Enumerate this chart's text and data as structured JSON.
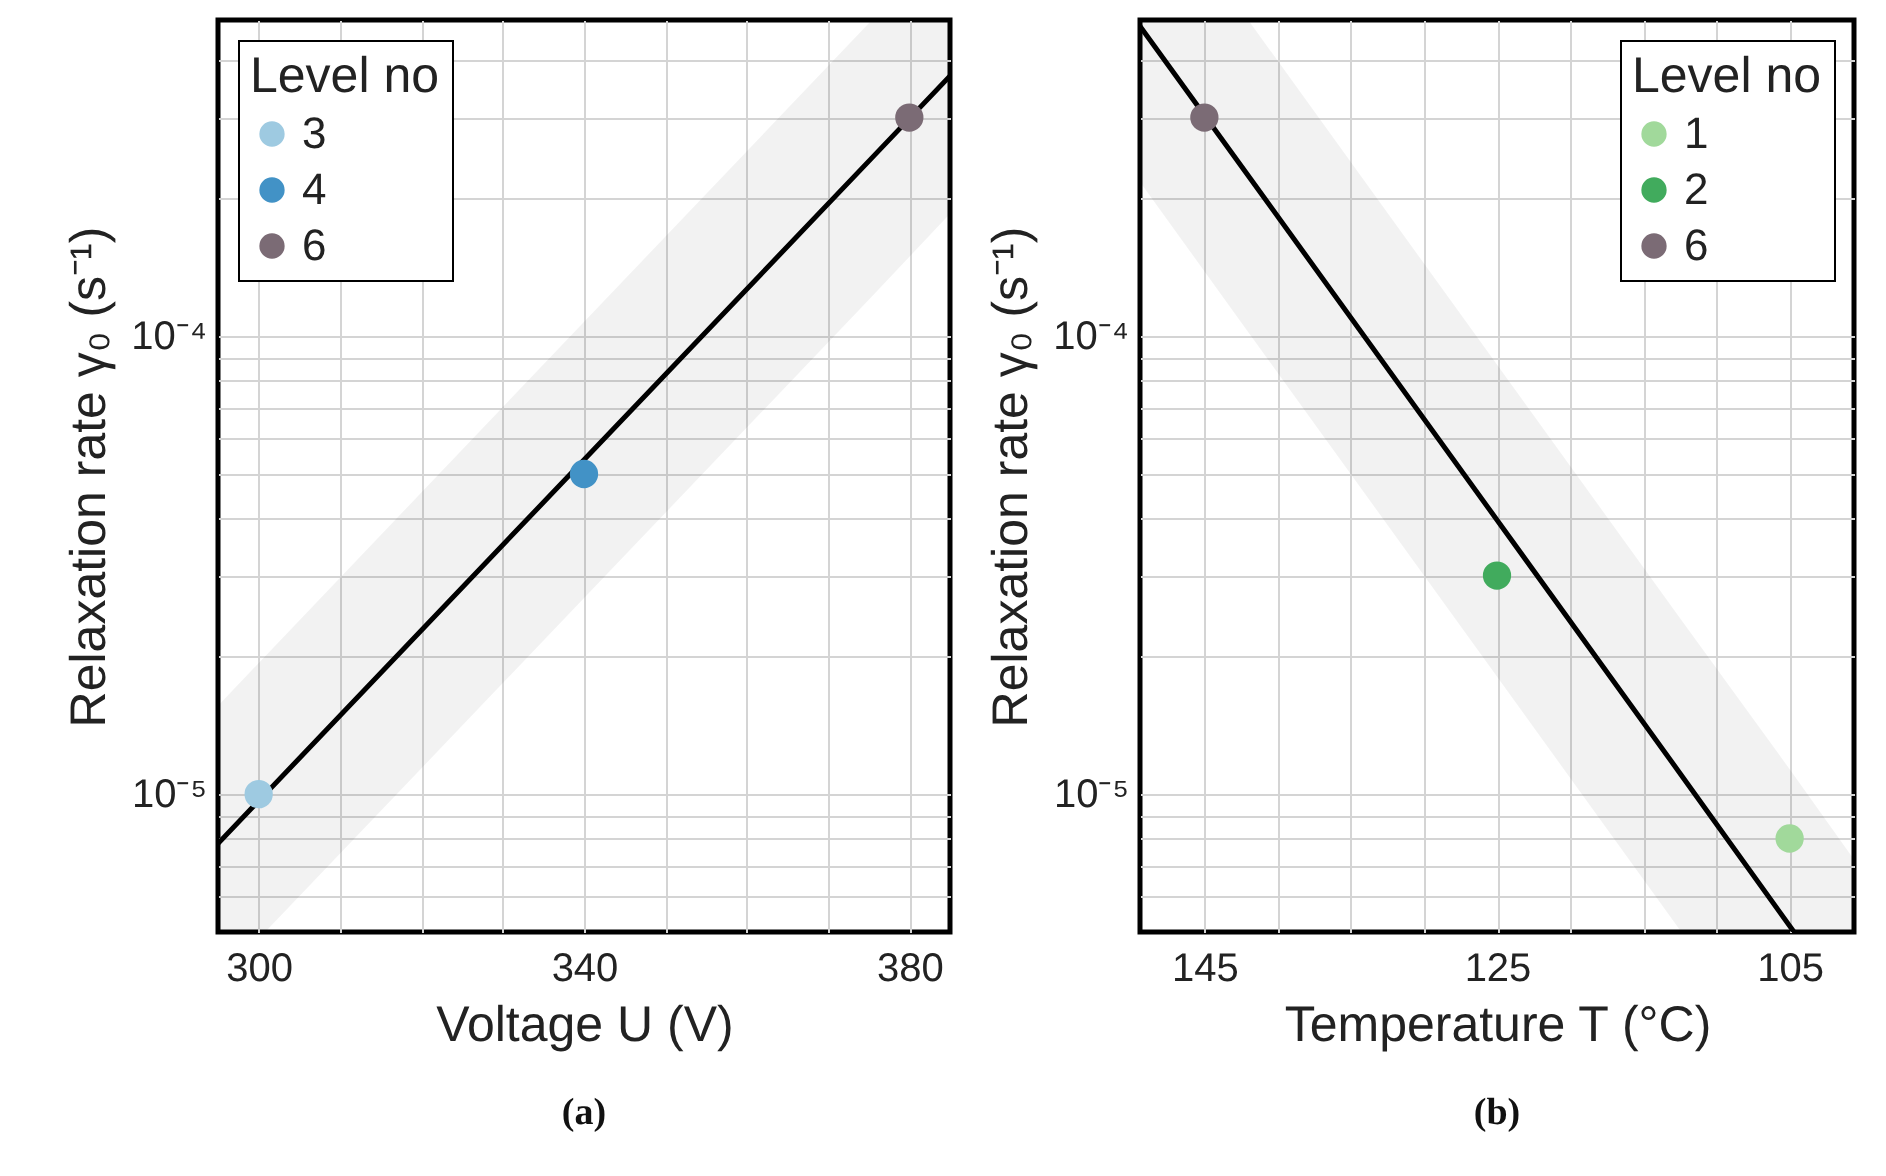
{
  "chart_data": [
    {
      "type": "scatter",
      "xlabel": "Voltage U (V)",
      "ylabel": "Relaxation rate γ₀ (s⁻¹)",
      "legend_title": "Level no",
      "legend": "top left",
      "log": "y",
      "grid": true,
      "marker": "circle",
      "annotations": [
        "(a)"
      ],
      "xlim": [
        295,
        385
      ],
      "xticks": [
        300,
        {
          "value": 310,
          "label": null
        },
        {
          "value": 320,
          "label": null
        },
        {
          "value": 330,
          "label": null
        },
        340,
        {
          "value": 350,
          "label": null
        },
        {
          "value": 360,
          "label": null
        },
        {
          "value": 370,
          "label": null
        },
        380
      ],
      "ylim": [
        5e-06,
        0.00049
      ],
      "yticks": [
        {
          "value": 6e-06,
          "label": null
        },
        {
          "value": 7e-06,
          "label": null
        },
        {
          "value": 8e-06,
          "label": null
        },
        {
          "value": 9e-06,
          "label": null
        },
        {
          "value": 1e-05,
          "label": "10⁻⁵"
        },
        {
          "value": 2e-05,
          "label": null
        },
        {
          "value": 3e-05,
          "label": null
        },
        {
          "value": 4e-05,
          "label": null
        },
        {
          "value": 5e-05,
          "label": null
        },
        {
          "value": 6e-05,
          "label": null
        },
        {
          "value": 7e-05,
          "label": null
        },
        {
          "value": 8e-05,
          "label": null
        },
        {
          "value": 9e-05,
          "label": null
        },
        {
          "value": 0.0001,
          "label": "10⁻⁴"
        },
        {
          "value": 0.0002,
          "label": null
        },
        {
          "value": 0.0003,
          "label": null
        },
        {
          "value": 0.0004,
          "label": null
        }
      ],
      "series": [
        {
          "type": "line",
          "marker": "none",
          "color": "#000000",
          "x": [
            295,
            300.8,
            375.4,
            385
          ],
          "values": [
            7.8e-06,
            1e-05,
            0.000245,
            0.00037
          ],
          "lower": [
            5e-06,
            5e-06,
            0.000122,
            0.000185
          ],
          "upper": [
            1.56e-05,
            2e-05,
            0.00049,
            0.00049
          ]
        },
        {
          "name": "3",
          "color": "#9ecae1",
          "x": [
            300
          ],
          "values": [
            1e-05
          ]
        },
        {
          "name": "4",
          "color": "#4292c6",
          "x": [
            340
          ],
          "values": [
            5e-05
          ]
        },
        {
          "name": "6",
          "color": "#7b6b75",
          "x": [
            380
          ],
          "values": [
            0.0003
          ]
        }
      ]
    },
    {
      "type": "scatter",
      "xlabel": "Temperature T (°C)",
      "ylabel": "Relaxation rate γ₀ (s⁻¹)",
      "legend_title": "Level no",
      "legend": "top right",
      "log": "y",
      "grid": true,
      "marker": "circle",
      "annotations": [
        "(b)"
      ],
      "xlim": [
        149.4,
        100.6
      ],
      "xticks": [
        145,
        {
          "value": 140,
          "label": null
        },
        {
          "value": 135,
          "label": null
        },
        {
          "value": 130,
          "label": null
        },
        125,
        {
          "value": 120,
          "label": null
        },
        {
          "value": 115,
          "label": null
        },
        {
          "value": 110,
          "label": null
        },
        105
      ],
      "ylim": [
        5e-06,
        0.00049
      ],
      "yticks": [
        {
          "value": 6e-06,
          "label": null
        },
        {
          "value": 7e-06,
          "label": null
        },
        {
          "value": 8e-06,
          "label": null
        },
        {
          "value": 9e-06,
          "label": null
        },
        {
          "value": 1e-05,
          "label": "10⁻⁵"
        },
        {
          "value": 2e-05,
          "label": null
        },
        {
          "value": 3e-05,
          "label": null
        },
        {
          "value": 4e-05,
          "label": null
        },
        {
          "value": 5e-05,
          "label": null
        },
        {
          "value": 6e-05,
          "label": null
        },
        {
          "value": 7e-05,
          "label": null
        },
        {
          "value": 8e-05,
          "label": null
        },
        {
          "value": 9e-05,
          "label": null
        },
        {
          "value": 0.0001,
          "label": "10⁻⁴"
        },
        {
          "value": 0.0002,
          "label": null
        },
        {
          "value": 0.0003,
          "label": null
        },
        {
          "value": 0.0004,
          "label": null
        }
      ],
      "series": [
        {
          "type": "line",
          "marker": "none",
          "color": "#000000",
          "x": [
            149.4,
            142,
            112.4,
            104.7,
            100.6
          ],
          "values": [
            0.000475,
            0.000224,
            1.1e-05,
            5e-06,
            null
          ],
          "lower": [
            0.000217,
            0.000102,
            5e-06,
            5e-06,
            5e-06
          ],
          "upper": [
            0.00049,
            0.00049,
            2.4e-05,
            1.1e-05,
            7.2e-06
          ]
        },
        {
          "name": "1",
          "color": "#a1d99b",
          "x": [
            105
          ],
          "values": [
            8e-06
          ]
        },
        {
          "name": "2",
          "color": "#41ab5d",
          "x": [
            125
          ],
          "values": [
            3e-05
          ]
        },
        {
          "name": "6",
          "color": "#7b6b75",
          "x": [
            145
          ],
          "values": [
            0.0003
          ]
        }
      ]
    }
  ]
}
